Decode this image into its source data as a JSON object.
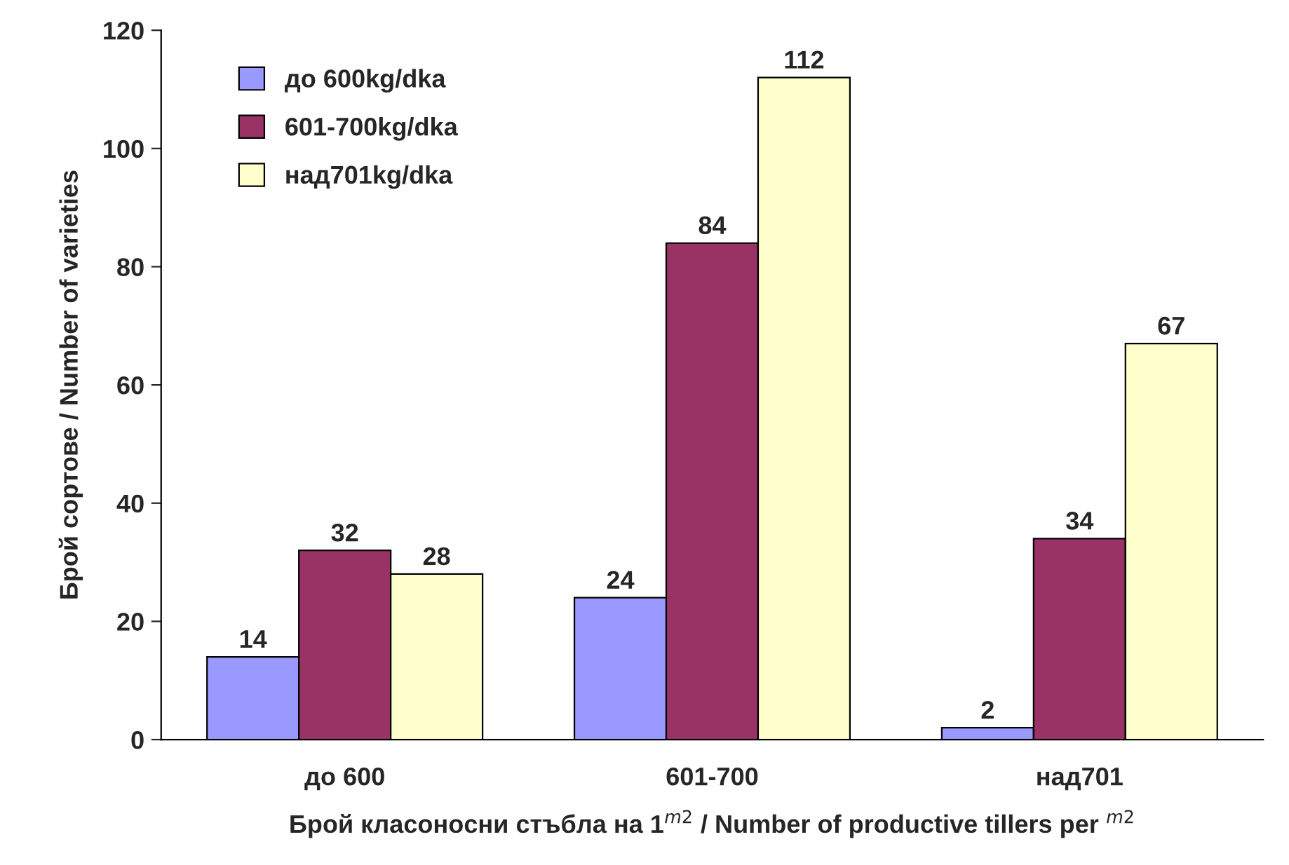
{
  "chart_data": {
    "type": "bar",
    "xlabel": "Брой класоносни стъбла на 1$^{m2}$ / Number of productive tillers per $^{m2}$",
    "ylabel": "Брой сортове / Number of varieties",
    "categories": [
      "до 600",
      "601-700",
      "над701"
    ],
    "series": [
      {
        "name": "до 600kg/dka",
        "color": "#9999ff",
        "values": [
          14,
          24,
          2
        ]
      },
      {
        "name": "601-700kg/dka",
        "color": "#993366",
        "values": [
          32,
          84,
          34
        ]
      },
      {
        "name": "над701kg/dka",
        "color": "#ffffcc",
        "values": [
          28,
          112,
          67
        ]
      }
    ],
    "ylim": [
      0,
      120
    ],
    "yticks": [
      0,
      20,
      40,
      60,
      80,
      100,
      120
    ],
    "data_labels": true,
    "legend": "top left",
    "grid": false
  }
}
